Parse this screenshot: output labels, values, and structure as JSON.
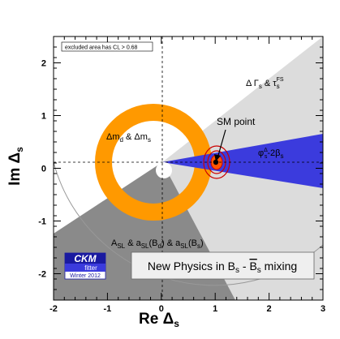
{
  "chart_data": {
    "type": "scatter",
    "title": "",
    "xlabel": "Re Δs",
    "ylabel": "Im Δs",
    "xlim": [
      -2,
      3
    ],
    "ylim": [
      -2.5,
      2.5
    ],
    "x_ticks": [
      "-2",
      "-1",
      "0",
      "1",
      "2",
      "3"
    ],
    "y_ticks": [
      "-2",
      "-1",
      "0",
      "1",
      "2"
    ],
    "grid": false,
    "legend_box": "excluded area has CL > 0.68",
    "regions": [
      {
        "name": "Δ Γs & τsFS",
        "color": "#dcdcdc"
      },
      {
        "name": "ASL & aSL(Bd) & aSL(Bs)",
        "color": "#8a8a8a"
      },
      {
        "name": "Δmd & Δms",
        "color": "#ff9900"
      },
      {
        "name": "φΔs-2βs",
        "color": "#3b3bdd"
      }
    ],
    "sm_point": {
      "label": "SM point",
      "x": 1.0,
      "y": 0.0
    },
    "annotation_box": "New Physics in Bs - B̄s mixing",
    "logo": {
      "line1": "CKM",
      "line2": "fitter",
      "line3": "Winter 2012"
    },
    "colors": {
      "background": "#ffffff",
      "frame": "#000000",
      "sm_contour": "#cc0000"
    }
  }
}
